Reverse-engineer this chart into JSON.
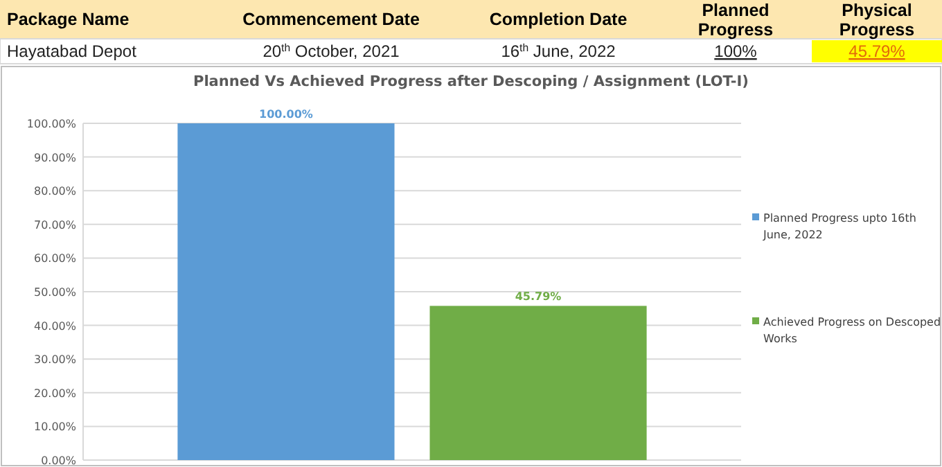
{
  "chart_data": [
    {
      "type": "other",
      "annotations": [
        "Package Name",
        "Commencement Date",
        "Completion Date",
        "Planned Progress",
        "Physical Progress",
        "Hayatabad Depot",
        "20$^{th}$ October, 2021",
        "16$^{th}$ June, 2022",
        "100%",
        "45.79%"
      ]
    },
    {
      "type": "bar",
      "title": "Planned Vs Achieved Progress after Descoping / Assignment (LOT-I)",
      "categories": [
        null
      ],
      "ylim": [
        0,
        100
      ],
      "yticks": [
        {
          "value": 0,
          "label": "0.00%"
        },
        {
          "value": 10,
          "label": "10.00%"
        },
        {
          "value": 20,
          "label": "20.00%"
        },
        {
          "value": 30,
          "label": "30.00%"
        },
        {
          "value": 40,
          "label": "40.00%"
        },
        {
          "value": 50,
          "label": "50.00%"
        },
        {
          "value": 60,
          "label": "60.00%"
        },
        {
          "value": 70,
          "label": "70.00%"
        },
        {
          "value": 80,
          "label": "80.00%"
        },
        {
          "value": 90,
          "label": "90.00%"
        },
        {
          "value": 100,
          "label": "100.00%"
        }
      ],
      "grid": "y",
      "legend": "right",
      "series": [
        {
          "name": "Planned Progress upto 16th June, 2022",
          "color": "#5b9bd5",
          "values": [
            100
          ],
          "value_labels": [
            "100.00%"
          ]
        },
        {
          "name": "Achieved Progress on Descoped Works",
          "color": "#70ad47",
          "values": [
            45.79
          ],
          "value_labels": [
            "45.79%"
          ]
        }
      ]
    }
  ]
}
